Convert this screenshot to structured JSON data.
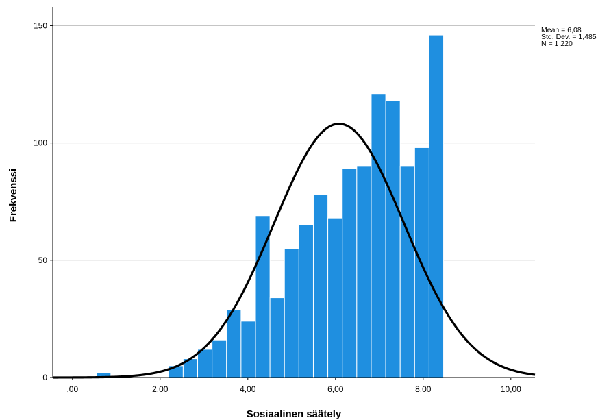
{
  "chart_data": {
    "type": "bar",
    "subtype": "histogram",
    "xlabel": "Sosiaalinen säätely",
    "ylabel": "Frekvenssi",
    "xlim": [
      -0.45,
      10.55
    ],
    "ylim": [
      0,
      158
    ],
    "x_ticks": [
      {
        "value": 0,
        "label": ",00"
      },
      {
        "value": 2,
        "label": "2,00"
      },
      {
        "value": 4,
        "label": "4,00"
      },
      {
        "value": 6,
        "label": "6,00"
      },
      {
        "value": 8,
        "label": "8,00"
      },
      {
        "value": 10,
        "label": "10,00"
      }
    ],
    "y_ticks": [
      {
        "value": 0,
        "label": "0"
      },
      {
        "value": 50,
        "label": "50"
      },
      {
        "value": 100,
        "label": "100"
      },
      {
        "value": 150,
        "label": "150"
      }
    ],
    "grid": "horizontal",
    "bar_color": "#1f8fe0",
    "bins": [
      {
        "start": 0.545,
        "end": 0.875,
        "count": 2
      },
      {
        "start": 2.195,
        "end": 2.525,
        "count": 5
      },
      {
        "start": 2.525,
        "end": 2.855,
        "count": 8
      },
      {
        "start": 2.855,
        "end": 3.185,
        "count": 12
      },
      {
        "start": 3.185,
        "end": 3.515,
        "count": 16
      },
      {
        "start": 3.515,
        "end": 3.845,
        "count": 29
      },
      {
        "start": 3.845,
        "end": 4.175,
        "count": 24
      },
      {
        "start": 4.175,
        "end": 4.505,
        "count": 69
      },
      {
        "start": 4.505,
        "end": 4.835,
        "count": 34
      },
      {
        "start": 4.835,
        "end": 5.165,
        "count": 55
      },
      {
        "start": 5.165,
        "end": 5.495,
        "count": 65
      },
      {
        "start": 5.495,
        "end": 5.825,
        "count": 78
      },
      {
        "start": 5.825,
        "end": 6.155,
        "count": 68
      },
      {
        "start": 6.155,
        "end": 6.485,
        "count": 89
      },
      {
        "start": 6.485,
        "end": 6.815,
        "count": 90
      },
      {
        "start": 6.815,
        "end": 7.145,
        "count": 121
      },
      {
        "start": 7.145,
        "end": 7.475,
        "count": 118
      },
      {
        "start": 7.475,
        "end": 7.805,
        "count": 90
      },
      {
        "start": 7.805,
        "end": 8.135,
        "count": 98
      },
      {
        "start": 8.135,
        "end": 8.465,
        "count": 146
      }
    ],
    "normal_curve": {
      "mean": 6.08,
      "sd": 1.485,
      "n": 1220,
      "bin_width": 0.33,
      "color": "#000000"
    },
    "stats_legend": [
      "Mean = 6,08",
      "Std. Dev. = 1,485",
      "N = 1 220"
    ]
  }
}
